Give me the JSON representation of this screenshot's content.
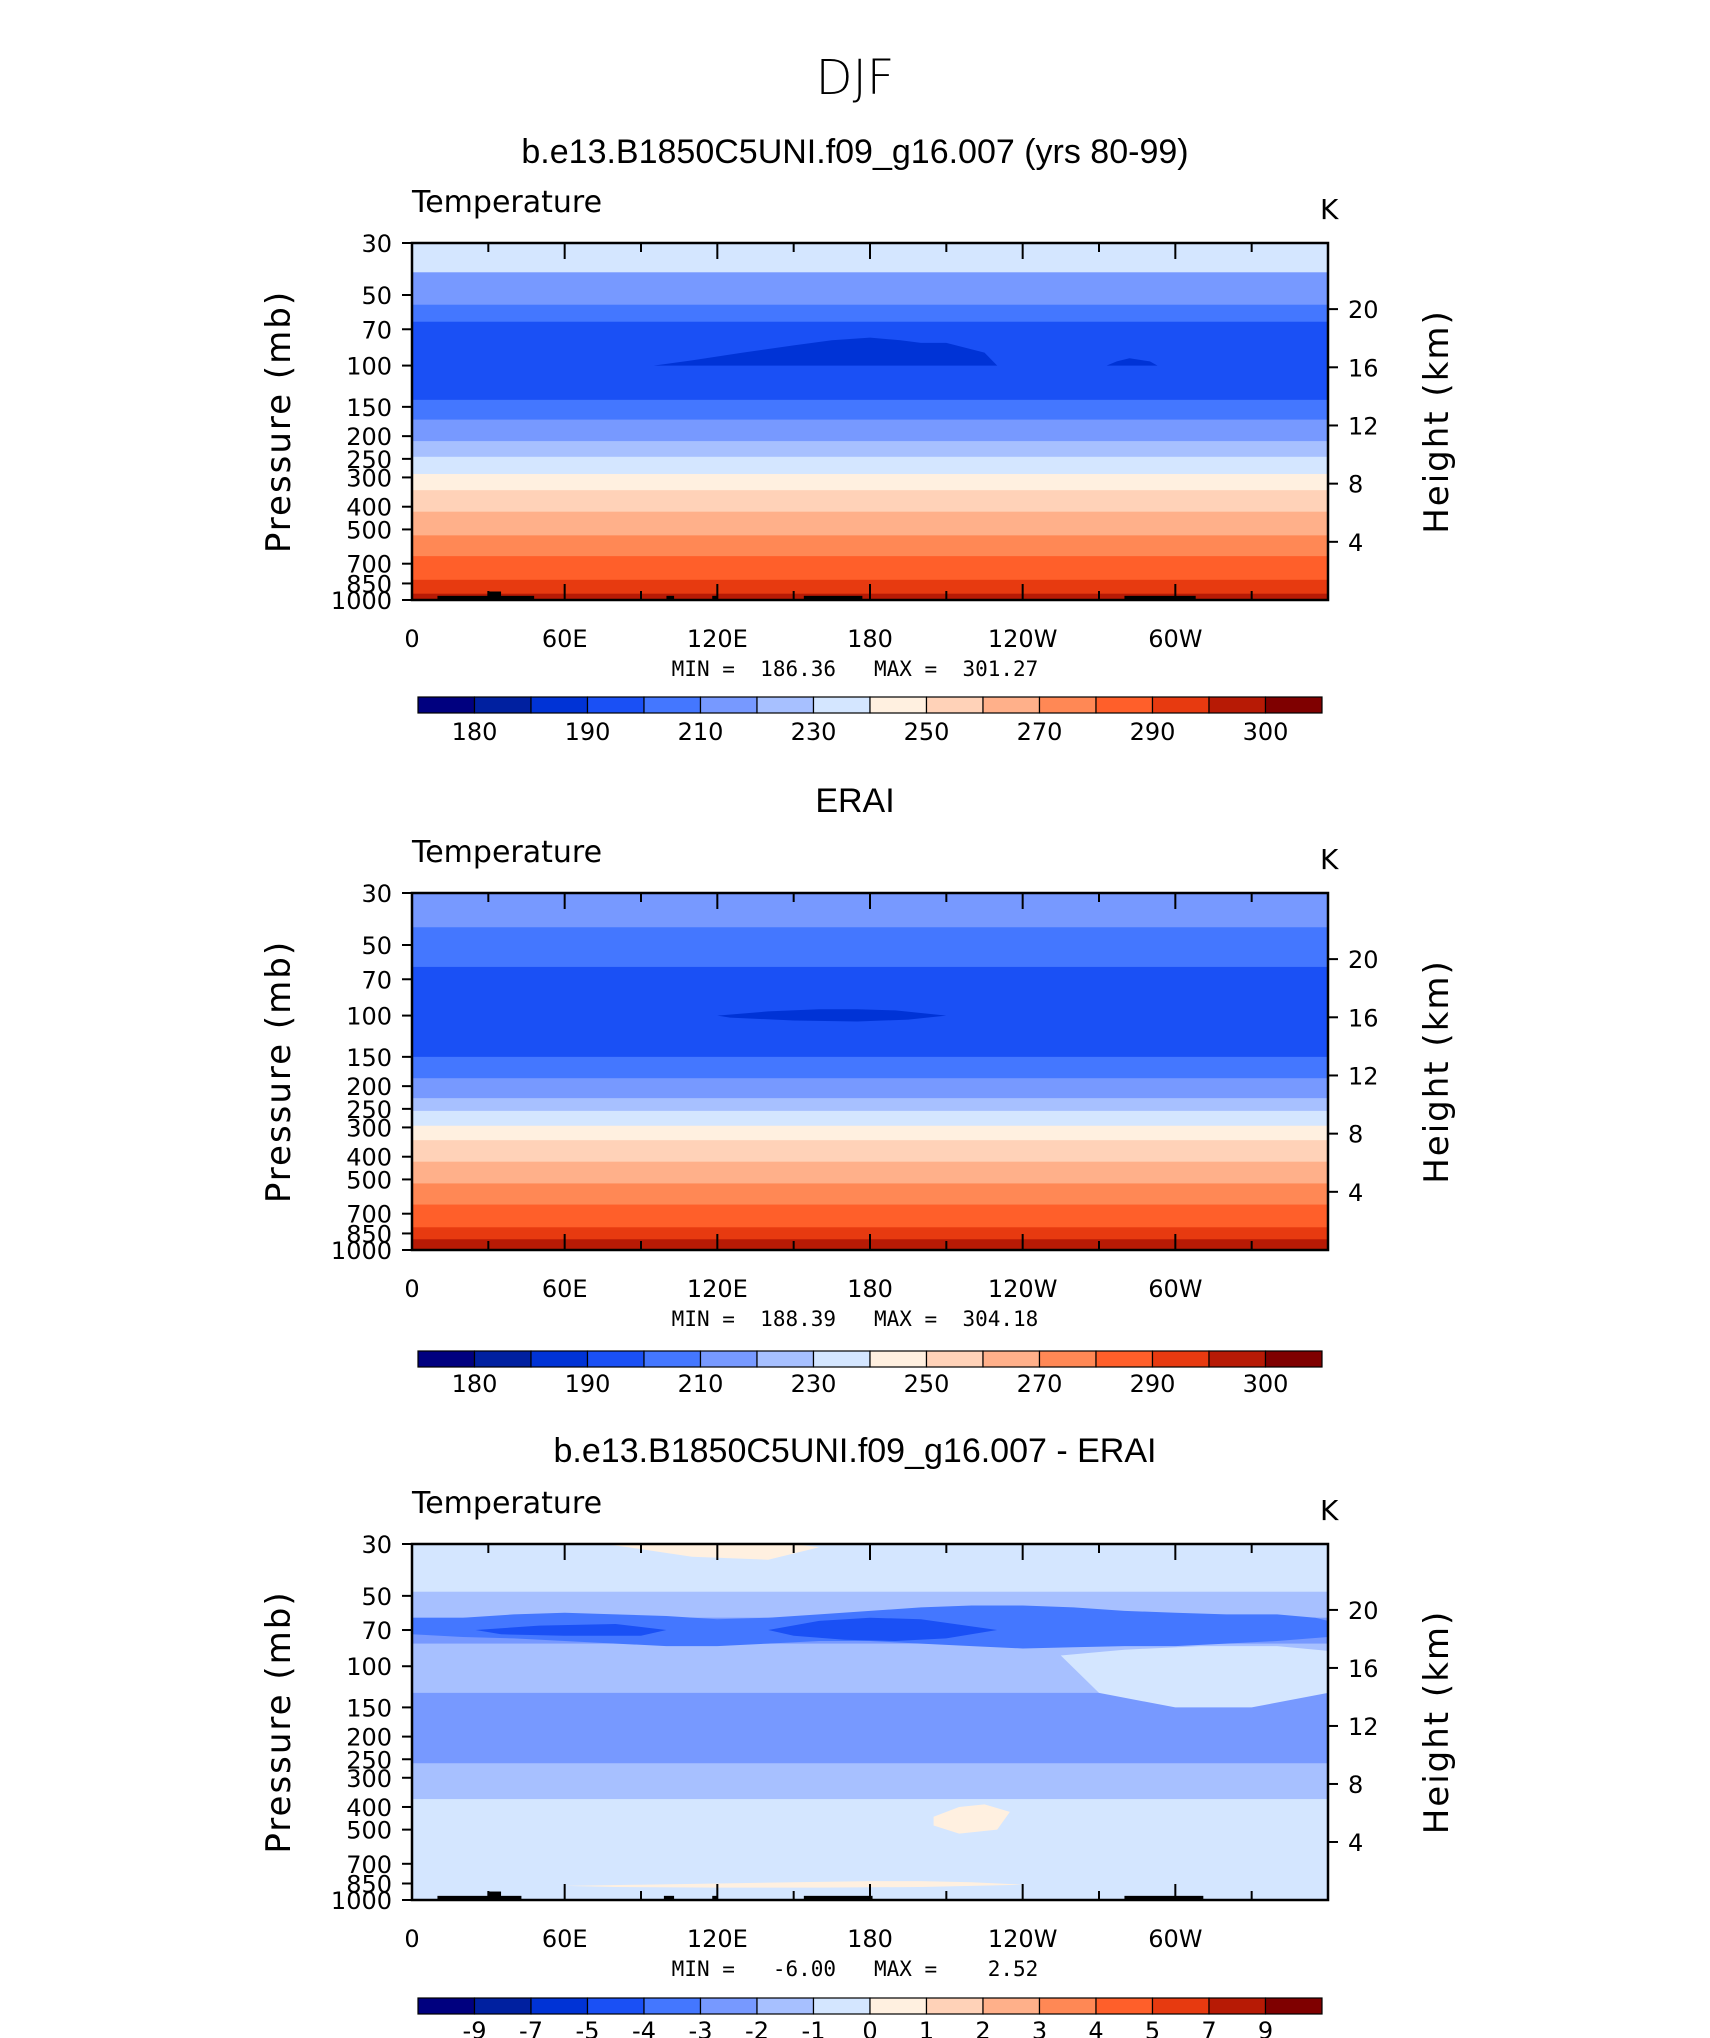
{
  "main_title": "DJF",
  "colors": {
    "temp_levels": [
      "#00007f",
      "#0020a0",
      "#0033d6",
      "#1a50f5",
      "#4477ff",
      "#7799ff",
      "#a7c0ff",
      "#d4e6ff",
      "#fff0e0",
      "#ffd2b8",
      "#ffb08a",
      "#ff8855",
      "#ff5f2a",
      "#e73a10",
      "#b71a05",
      "#7f0000"
    ],
    "diff_levels": [
      "#00007f",
      "#0020a0",
      "#0033d6",
      "#1a50f5",
      "#4477ff",
      "#7799ff",
      "#a7c0ff",
      "#d4e6ff",
      "#fff0e0",
      "#ffd2b8",
      "#ffb08a",
      "#ff8855",
      "#ff5f2a",
      "#e73a10",
      "#b71a05",
      "#7f0000"
    ]
  },
  "chart_data": [
    {
      "type": "heatmap",
      "title": "b.e13.B1850C5UNI.f09_g16.007 (yrs 80-99)",
      "variable_label": "Temperature",
      "units_label": "K",
      "ylabel": "Pressure (mb)",
      "y2label": "Height (km)",
      "pressure_ticks": [
        "30",
        "50",
        "70",
        "100",
        "150",
        "200",
        "250",
        "300",
        "400",
        "500",
        "700",
        "850",
        "1000"
      ],
      "height_ticks": [
        "20",
        "16",
        "12",
        "8",
        "4"
      ],
      "x_ticks": [
        "0",
        "60E",
        "120E",
        "180",
        "120W",
        "60W"
      ],
      "stats_text": "MIN =  186.36   MAX =  301.27",
      "colorbar_labels": [
        "180",
        "190",
        "210",
        "230",
        "250",
        "270",
        "290",
        "300"
      ],
      "bands": [
        {
          "p": 30,
          "c": 7
        },
        {
          "p": 40,
          "c": 5
        },
        {
          "p": 55,
          "c": 4
        },
        {
          "p": 65,
          "c": 3
        },
        {
          "p": 140,
          "c": 4
        },
        {
          "p": 170,
          "c": 5
        },
        {
          "p": 210,
          "c": 6
        },
        {
          "p": 245,
          "c": 7
        },
        {
          "p": 290,
          "c": 8
        },
        {
          "p": 340,
          "c": 9
        },
        {
          "p": 420,
          "c": 10
        },
        {
          "p": 530,
          "c": 11
        },
        {
          "p": 650,
          "c": 12
        },
        {
          "p": 820,
          "c": 13
        },
        {
          "p": 940,
          "c": 14
        },
        {
          "p": 1000,
          "c": 14
        }
      ],
      "blobs": [
        {
          "lon": [
            95,
            110,
            130,
            150,
            165,
            180,
            192,
            200,
            210,
            225,
            230,
            215,
            190,
            160,
            130,
            100
          ],
          "p": [
            100,
            95,
            88,
            82,
            78,
            76,
            78,
            80,
            80,
            88,
            100,
            100,
            100,
            100,
            100,
            100
          ],
          "c": 2
        },
        {
          "lon": [
            273,
            277,
            282,
            290,
            293,
            285,
            275
          ],
          "p": [
            100,
            96,
            93,
            96,
            100,
            100,
            100
          ],
          "c": 2
        }
      ],
      "terrain": [
        {
          "lon": [
            10,
            48
          ],
          "p": 960
        },
        {
          "lon": [
            30,
            35
          ],
          "p": 920
        },
        {
          "lon": [
            100,
            103
          ],
          "p": 960
        },
        {
          "lon": [
            118,
            120
          ],
          "p": 960
        },
        {
          "lon": [
            154,
            177
          ],
          "p": 960
        },
        {
          "lon": [
            280,
            308
          ],
          "p": 960
        }
      ]
    },
    {
      "type": "heatmap",
      "title": "ERAI",
      "variable_label": "Temperature",
      "units_label": "K",
      "ylabel": "Pressure (mb)",
      "y2label": "Height (km)",
      "pressure_ticks": [
        "30",
        "50",
        "70",
        "100",
        "150",
        "200",
        "250",
        "300",
        "400",
        "500",
        "700",
        "850",
        "1000"
      ],
      "height_ticks": [
        "20",
        "16",
        "12",
        "8",
        "4"
      ],
      "x_ticks": [
        "0",
        "60E",
        "120E",
        "180",
        "120W",
        "60W"
      ],
      "stats_text": "MIN =  188.39   MAX =  304.18",
      "colorbar_labels": [
        "180",
        "190",
        "210",
        "230",
        "250",
        "270",
        "290",
        "300"
      ],
      "bands": [
        {
          "p": 30,
          "c": 5
        },
        {
          "p": 42,
          "c": 4
        },
        {
          "p": 62,
          "c": 3
        },
        {
          "p": 150,
          "c": 4
        },
        {
          "p": 185,
          "c": 5
        },
        {
          "p": 225,
          "c": 6
        },
        {
          "p": 255,
          "c": 7
        },
        {
          "p": 295,
          "c": 8
        },
        {
          "p": 340,
          "c": 9
        },
        {
          "p": 420,
          "c": 10
        },
        {
          "p": 520,
          "c": 11
        },
        {
          "p": 640,
          "c": 12
        },
        {
          "p": 800,
          "c": 13
        },
        {
          "p": 900,
          "c": 14
        },
        {
          "p": 1000,
          "c": 14
        }
      ],
      "blobs": [
        {
          "lon": [
            120,
            140,
            160,
            175,
            190,
            210,
            195,
            175,
            150,
            125
          ],
          "p": [
            100,
            96,
            94,
            94,
            95,
            100,
            104,
            106,
            105,
            102
          ],
          "c": 2
        }
      ],
      "terrain": []
    },
    {
      "type": "heatmap",
      "title": "b.e13.B1850C5UNI.f09_g16.007 - ERAI",
      "variable_label": "Temperature",
      "units_label": "K",
      "ylabel": "Pressure (mb)",
      "y2label": "Height (km)",
      "pressure_ticks": [
        "30",
        "50",
        "70",
        "100",
        "150",
        "200",
        "250",
        "300",
        "400",
        "500",
        "700",
        "850",
        "1000"
      ],
      "height_ticks": [
        "20",
        "16",
        "12",
        "8",
        "4"
      ],
      "x_ticks": [
        "0",
        "60E",
        "120E",
        "180",
        "120W",
        "60W"
      ],
      "stats_text": "MIN =   -6.00   MAX =    2.52",
      "colorbar_labels": [
        "-9",
        "-7",
        "-5",
        "-4",
        "-3",
        "-2",
        "-1",
        "0",
        "1",
        "2",
        "3",
        "4",
        "5",
        "7",
        "9"
      ],
      "bands": [
        {
          "p": 30,
          "c": 7
        },
        {
          "p": 48,
          "c": 6
        },
        {
          "p": 62,
          "c": 5
        },
        {
          "p": 80,
          "c": 6
        },
        {
          "p": 130,
          "c": 5
        },
        {
          "p": 260,
          "c": 6
        },
        {
          "p": 370,
          "c": 7
        },
        {
          "p": 1000,
          "c": 7
        }
      ],
      "blobs": [
        {
          "lon": [
            75,
            100,
            130,
            150,
            160,
            140,
            110,
            85
          ],
          "p": [
            30,
            30,
            30,
            30,
            31,
            35,
            34,
            31
          ],
          "c": 8
        },
        {
          "lon": [
            20,
            40,
            60,
            80,
            100,
            120,
            140,
            160,
            180,
            200,
            220,
            240,
            260,
            280,
            300,
            320,
            340,
            355,
            360,
            360,
            340,
            320,
            300,
            280,
            260,
            240,
            220,
            200,
            180,
            160,
            140,
            120,
            100,
            80,
            60,
            40,
            20,
            0,
            0
          ],
          "p": [
            62,
            60,
            59,
            60,
            61,
            63,
            62,
            60,
            58,
            56,
            55,
            55,
            56,
            58,
            59,
            60,
            60,
            62,
            64,
            75,
            78,
            80,
            82,
            82,
            83,
            84,
            82,
            80,
            78,
            78,
            80,
            82,
            82,
            80,
            78,
            76,
            75,
            73,
            62
          ],
          "c": 4
        },
        {
          "lon": [
            140,
            160,
            180,
            200,
            230,
            210,
            190,
            170,
            150
          ],
          "p": [
            70,
            64,
            62,
            63,
            70,
            76,
            78,
            77,
            74
          ],
          "c": 3
        },
        {
          "lon": [
            25,
            50,
            80,
            100,
            90,
            60,
            35
          ],
          "p": [
            70,
            67,
            66,
            70,
            74,
            74,
            73
          ],
          "c": 3
        },
        {
          "lon": [
            255,
            280,
            310,
            340,
            360,
            360,
            330,
            300,
            270
          ],
          "p": [
            90,
            85,
            82,
            82,
            86,
            130,
            150,
            150,
            130
          ],
          "c": 7
        },
        {
          "lon": [
            60,
            100,
            140,
            180,
            220,
            250,
            280,
            290,
            260,
            220,
            180,
            140,
            100,
            60
          ],
          "p": [
            480,
            430,
            400,
            380,
            380,
            400,
            480,
            700,
            720,
            700,
            700,
            700,
            700,
            650
          ],
          "c": 7
        },
        {
          "lon": [
            205,
            215,
            225,
            235,
            230,
            215,
            205
          ],
          "p": [
            440,
            400,
            390,
            420,
            500,
            520,
            480
          ],
          "c": 8
        },
        {
          "lon": [
            60,
            90,
            120,
            150,
            180,
            200,
            220,
            240,
            200,
            160,
            120,
            80
          ],
          "p": [
            870,
            860,
            850,
            840,
            830,
            830,
            840,
            860,
            880,
            885,
            885,
            880
          ],
          "c": 8
        }
      ],
      "terrain": [
        {
          "lon": [
            10,
            43
          ],
          "p": 960
        },
        {
          "lon": [
            30,
            35
          ],
          "p": 920
        },
        {
          "lon": [
            99,
            103
          ],
          "p": 960
        },
        {
          "lon": [
            118,
            120
          ],
          "p": 960
        },
        {
          "lon": [
            154,
            181
          ],
          "p": 960
        },
        {
          "lon": [
            280,
            311
          ],
          "p": 960
        }
      ]
    }
  ]
}
